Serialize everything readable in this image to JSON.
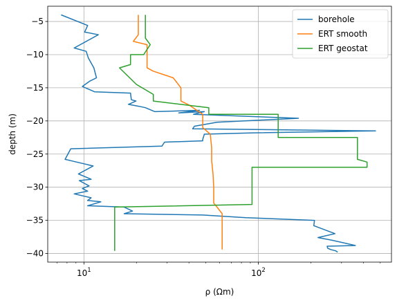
{
  "chart_data": {
    "type": "line",
    "xlabel": "ρ (Ωm)",
    "ylabel": "depth (m)",
    "xscale": "log",
    "xlim": [
      6.2,
      580
    ],
    "ylim": [
      -41.3,
      -2.7
    ],
    "grid": true,
    "legend_position": "top-right",
    "xticks": [
      {
        "value": 10,
        "base": "10",
        "exp": "1"
      },
      {
        "value": 100,
        "base": "10",
        "exp": "2"
      }
    ],
    "yticks": [
      {
        "value": -5,
        "label": "−5"
      },
      {
        "value": -10,
        "label": "−10"
      },
      {
        "value": -15,
        "label": "−15"
      },
      {
        "value": -20,
        "label": "−20"
      },
      {
        "value": -25,
        "label": "−25"
      },
      {
        "value": -30,
        "label": "−30"
      },
      {
        "value": -35,
        "label": "−35"
      },
      {
        "value": -40,
        "label": "−40"
      }
    ],
    "series": [
      {
        "name": "borehole",
        "color": "#1f77b4",
        "x": [
          7.4,
          10.5,
          10.1,
          12.1,
          8.8,
          10.3,
          10.6,
          11.4,
          11.8,
          10.8,
          9.8,
          11.5,
          18.5,
          18.7,
          19.9,
          18.0,
          20.7,
          22.5,
          25.5,
          46.0,
          35.0,
          49.0,
          42.5,
          170.0,
          58.0,
          43.0,
          42.0,
          470.0,
          93.0,
          49.0,
          48.0,
          48.0,
          29.0,
          28.0,
          8.4,
          7.8,
          8.4,
          11.3,
          9.3,
          11.0,
          9.4,
          10.7,
          9.8,
          10.5,
          8.8,
          11.0,
          10.5,
          12.5,
          10.5,
          17.0,
          19.0,
          17.0,
          48.0,
          85.0,
          210.0,
          208.0,
          275.0,
          220.0,
          265.0,
          360.0,
          248.0,
          250.0,
          260.0,
          278.0,
          285.0
        ],
        "y": [
          -4.0,
          -5.6,
          -6.6,
          -7.0,
          -9.0,
          -9.5,
          -10.5,
          -12.0,
          -13.5,
          -14.0,
          -14.8,
          -15.6,
          -15.8,
          -16.8,
          -17.0,
          -17.5,
          -17.8,
          -18.0,
          -18.6,
          -18.4,
          -18.8,
          -18.6,
          -19.0,
          -19.6,
          -20.2,
          -20.8,
          -21.2,
          -21.5,
          -21.8,
          -22.0,
          -22.8,
          -23.0,
          -23.2,
          -23.8,
          -24.2,
          -25.8,
          -26.0,
          -26.8,
          -28.0,
          -28.8,
          -29.0,
          -29.8,
          -30.2,
          -30.6,
          -31.0,
          -31.6,
          -32.0,
          -32.2,
          -32.8,
          -33.0,
          -33.6,
          -34.0,
          -34.2,
          -34.6,
          -35.0,
          -35.8,
          -37.0,
          -37.6,
          -38.0,
          -38.8,
          -38.9,
          -39.2,
          -39.4,
          -39.6,
          -39.8
        ]
      },
      {
        "name": "ERT smooth",
        "color": "#ff7f0e",
        "x": [
          20.5,
          20.5,
          19.2,
          23.0,
          23.0,
          25.0,
          32.5,
          36.0,
          36.0,
          40.0,
          48.0,
          48.0,
          53.0,
          54.0,
          54.0,
          55.0,
          55.5,
          55.5,
          58.0,
          62.0,
          62.0
        ],
        "y": [
          -4.0,
          -7.0,
          -8.0,
          -8.5,
          -12.0,
          -12.5,
          -13.5,
          -15.0,
          -17.0,
          -17.6,
          -19.0,
          -21.0,
          -22.0,
          -24.0,
          -26.0,
          -28.0,
          -30.0,
          -32.4,
          -33.0,
          -34.0,
          -39.4
        ]
      },
      {
        "name": "ERT geostat",
        "color": "#2ca02c",
        "x": [
          22.5,
          22.5,
          24.0,
          22.0,
          18.5,
          18.5,
          16.0,
          20.0,
          25.0,
          25.0,
          52.0,
          52.0,
          130.0,
          130.0,
          370.0,
          370.0,
          420.0,
          420.0,
          92.0,
          92.0,
          15.0,
          15.0
        ],
        "y": [
          -4.0,
          -7.5,
          -8.5,
          -10.0,
          -10.0,
          -11.5,
          -12.0,
          -14.5,
          -16.0,
          -17.0,
          -18.0,
          -19.0,
          -19.0,
          -22.5,
          -22.5,
          -25.8,
          -26.2,
          -27.0,
          -27.0,
          -32.6,
          -33.0,
          -39.6
        ]
      }
    ]
  }
}
